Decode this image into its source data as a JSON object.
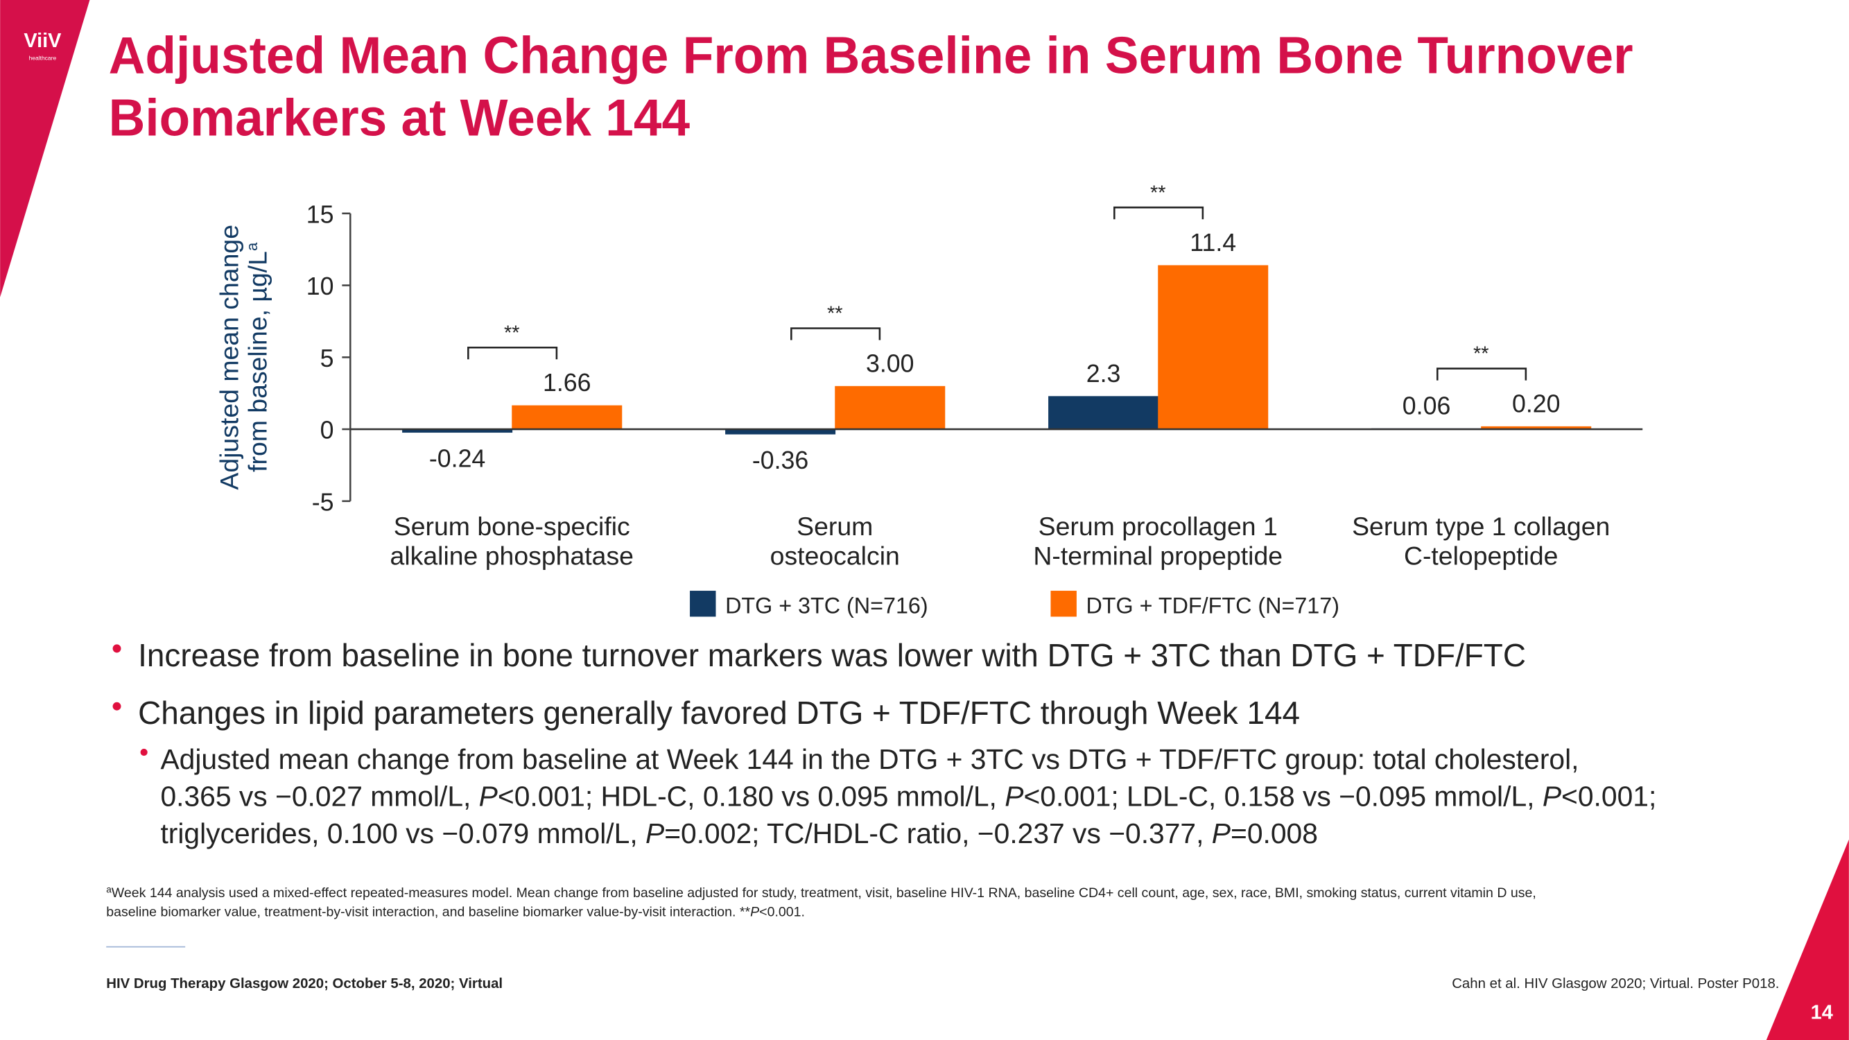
{
  "chart_data": {
    "type": "bar",
    "title": [
      "Adjusted Mean Change From Baseline in Serum Bone Turnover",
      "Biomarkers at Week 144"
    ],
    "y_label": {
      "lines": [
        "Adjusted mean change",
        "from baseline, µg/L"
      ],
      "superscript": "a"
    },
    "categories": [
      [
        "Serum bone-specific",
        "alkaline phosphatase"
      ],
      [
        "Serum",
        "osteocalcin"
      ],
      [
        "Serum procollagen 1",
        "N-terminal propeptide"
      ],
      [
        "Serum type 1 collagen",
        "C-telopeptide"
      ]
    ],
    "series": [
      {
        "name": "DTG + 3TC (N=716)",
        "color": "#123a63",
        "values": [
          -0.24,
          -0.36,
          2.3,
          0.06
        ],
        "value_labels": [
          "-0.24",
          "-0.36",
          "2.3",
          "0.06"
        ]
      },
      {
        "name": "DTG + TDF/FTC (N=717)",
        "color": "#fe6b00",
        "values": [
          1.66,
          3.0,
          11.4,
          0.2
        ],
        "value_labels": [
          "1.66",
          "3.00",
          "11.4",
          "0.20"
        ]
      }
    ],
    "significance": [
      "**",
      "**",
      "**",
      "**"
    ],
    "ylim": [
      -5,
      15
    ],
    "yticks": [
      -5,
      0,
      5,
      10,
      15
    ],
    "grid": false
  },
  "logo": {
    "name": "ViiV",
    "tagline": "healthcare"
  },
  "bullets": [
    "Increase from baseline in bone turnover markers was lower with DTG + 3TC than DTG + TDF/FTC",
    "Changes in lipid parameters generally favored DTG + TDF/FTC through Week 144"
  ],
  "sub_bullet": [
    [
      "Adjusted mean change from baseline at Week 144 in the DTG + 3TC vs DTG + TDF/FTC group: total cholesterol,"
    ],
    [
      "0.365 vs −0.027 mmol/L, ",
      {
        "text": "P",
        "style": "italic"
      },
      "<0.001; HDL-C, 0.180 vs 0.095 mmol/L, ",
      {
        "text": "P",
        "style": "italic"
      },
      "<0.001; LDL-C, 0.158 vs −0.095 mmol/L, ",
      {
        "text": "P",
        "style": "italic"
      },
      "<0.001;"
    ],
    [
      "triglycerides, 0.100 vs −0.079 mmol/L, ",
      {
        "text": "P",
        "style": "italic"
      },
      "=0.002; TC/HDL-C ratio, −0.237 vs −0.377, ",
      {
        "text": "P",
        "style": "italic"
      },
      "=0.008"
    ]
  ],
  "footnote": {
    "marker": "a",
    "lines": [
      [
        "Week 144 analysis used a mixed-effect repeated-measures model. Mean change from baseline adjusted for study, treatment, visit, baseline HIV-1 RNA, baseline CD4+ cell count, age, sex, race, BMI, smoking status, current vitamin D use,"
      ],
      [
        "baseline biomarker value, treatment-by-visit interaction, and baseline biomarker value-by-visit interaction. **",
        {
          "text": "P",
          "style": "italic"
        },
        "<0.001."
      ]
    ]
  },
  "footer": {
    "left": "HIV Drug Therapy Glasgow 2020; October 5-8, 2020; Virtual",
    "right": "Cahn et al. HIV Glasgow 2020; Virtual. Poster P018."
  },
  "page_number": "14"
}
